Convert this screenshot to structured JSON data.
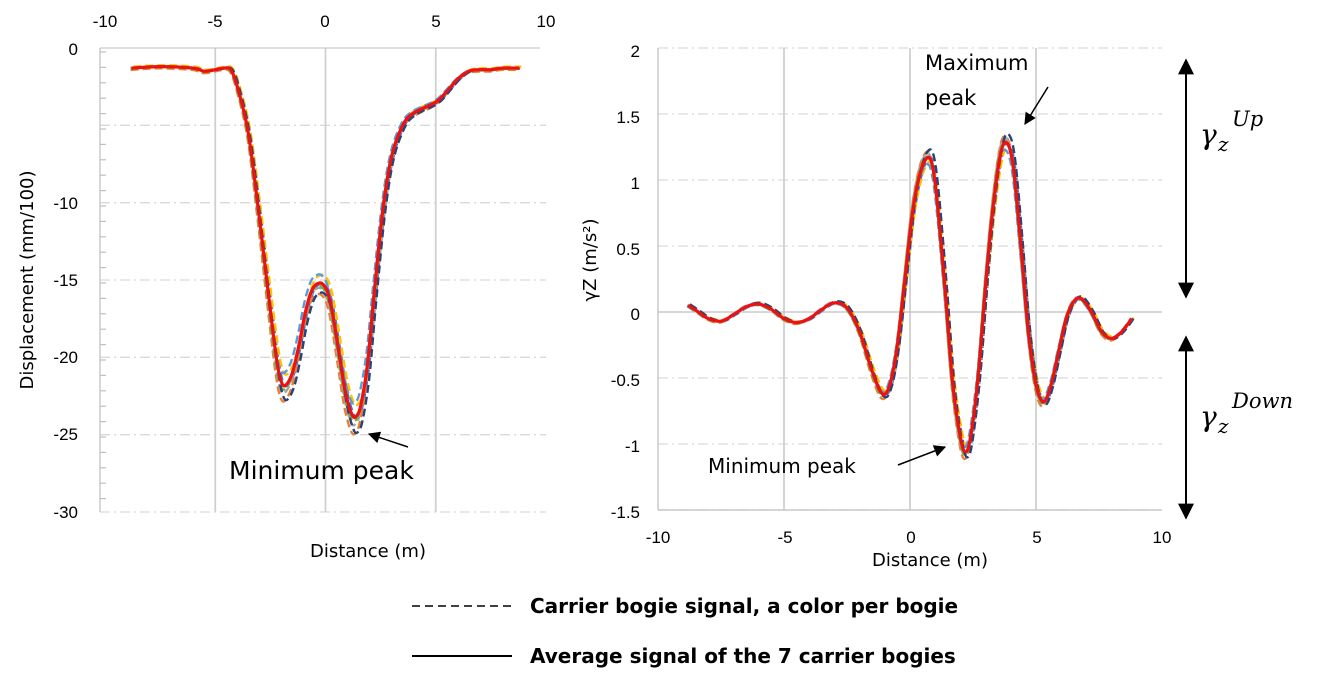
{
  "chart_data": [
    {
      "type": "line",
      "xlabel": "Distance (m)",
      "ylabel": "Displacement (mm/100)",
      "xlim": [
        -10,
        10
      ],
      "ylim": [
        -30,
        0
      ],
      "x_ticks": [
        "-10",
        "-5",
        "0",
        "5",
        "10"
      ],
      "y_ticks": [
        "0",
        "-10",
        "-15",
        "-20",
        "-25",
        "-30"
      ],
      "x_axis_position": "top",
      "grid": true,
      "annotations": [
        "Minimum peak"
      ],
      "x": [
        -8.8,
        -7.5,
        -6,
        -5.5,
        -5,
        -4.6,
        -4.3,
        -4,
        -3.5,
        -3,
        -2.5,
        -2.2,
        -2,
        -1.8,
        -1.5,
        -1.2,
        -0.9,
        -0.6,
        -0.3,
        -0.1,
        0.1,
        0.3,
        0.6,
        0.9,
        1.2,
        1.4,
        1.6,
        1.9,
        2.2,
        2.6,
        3,
        3.5,
        4,
        5,
        5.5,
        6,
        6.5,
        7,
        7.5,
        8,
        8.8
      ],
      "series": [
        {
          "values": [
            -1.3,
            -1.2,
            -1.3,
            -1.5,
            -1.4,
            -1.3,
            -1.4,
            -2.5,
            -5.5,
            -11,
            -17,
            -20.3,
            -21.6,
            -21.8,
            -21,
            -19.2,
            -17,
            -15.6,
            -15.2,
            -15.3,
            -15.8,
            -17,
            -19.6,
            -22.2,
            -23.7,
            -23.8,
            -23.1,
            -20.5,
            -16,
            -10.5,
            -7,
            -5,
            -4.2,
            -3.5,
            -2.8,
            -2,
            -1.5,
            -1.4,
            -1.4,
            -1.3,
            -1.3
          ]
        }
      ]
    },
    {
      "type": "line",
      "xlabel": "Distance (m)",
      "ylabel": "γZ (m/s²)",
      "xlim": [
        -10,
        10
      ],
      "ylim": [
        -1.5,
        2
      ],
      "x_ticks": [
        "-10",
        "-5",
        "0",
        "5",
        "10"
      ],
      "y_ticks": [
        "-1.5",
        "-1",
        "-0.5",
        "0",
        "0.5",
        "1",
        "1.5",
        "2"
      ],
      "grid": true,
      "annotations": [
        "Maximum peak",
        "Minimum peak"
      ],
      "x": [
        -8.8,
        -8.4,
        -8,
        -7.5,
        -7,
        -6.5,
        -6,
        -5.5,
        -5,
        -4.5,
        -4,
        -3.5,
        -3,
        -2.5,
        -2,
        -1.5,
        -1.1,
        -0.8,
        -0.5,
        -0.2,
        0.1,
        0.4,
        0.7,
        0.9,
        1.1,
        1.4,
        1.7,
        2,
        2.2,
        2.4,
        2.7,
        3,
        3.3,
        3.6,
        3.85,
        4.1,
        4.4,
        4.7,
        5,
        5.3,
        5.6,
        5.9,
        6.2,
        6.5,
        6.8,
        7.2,
        7.6,
        8,
        8.4,
        8.8
      ],
      "series": [
        {
          "values": [
            0.05,
            0.0,
            -0.05,
            -0.07,
            -0.02,
            0.04,
            0.06,
            0.02,
            -0.05,
            -0.08,
            -0.05,
            0.02,
            0.07,
            0.03,
            -0.15,
            -0.45,
            -0.62,
            -0.55,
            -0.25,
            0.25,
            0.75,
            1.05,
            1.17,
            1.1,
            0.8,
            0.15,
            -0.55,
            -0.95,
            -1.06,
            -0.95,
            -0.5,
            0.2,
            0.8,
            1.2,
            1.28,
            1.1,
            0.5,
            -0.15,
            -0.55,
            -0.68,
            -0.55,
            -0.3,
            -0.05,
            0.08,
            0.1,
            0.0,
            -0.15,
            -0.2,
            -0.15,
            -0.05
          ]
        }
      ]
    }
  ],
  "annotations": {
    "gamma_symbol": "γ",
    "gamma_sub": "z",
    "up_label": "Up",
    "down_label": "Down"
  },
  "legend": {
    "dashed_label": "Carrier bogie signal, a color per bogie",
    "solid_label": "Average signal of the 7 carrier bogies"
  },
  "colors": {
    "average": "#ee1111",
    "bogies": [
      "#4472c4",
      "#ed7d31",
      "#a5a5a5",
      "#ffc000",
      "#5b9bd5",
      "#70ad47",
      "#264478"
    ],
    "grid": "#d9d9d9"
  }
}
